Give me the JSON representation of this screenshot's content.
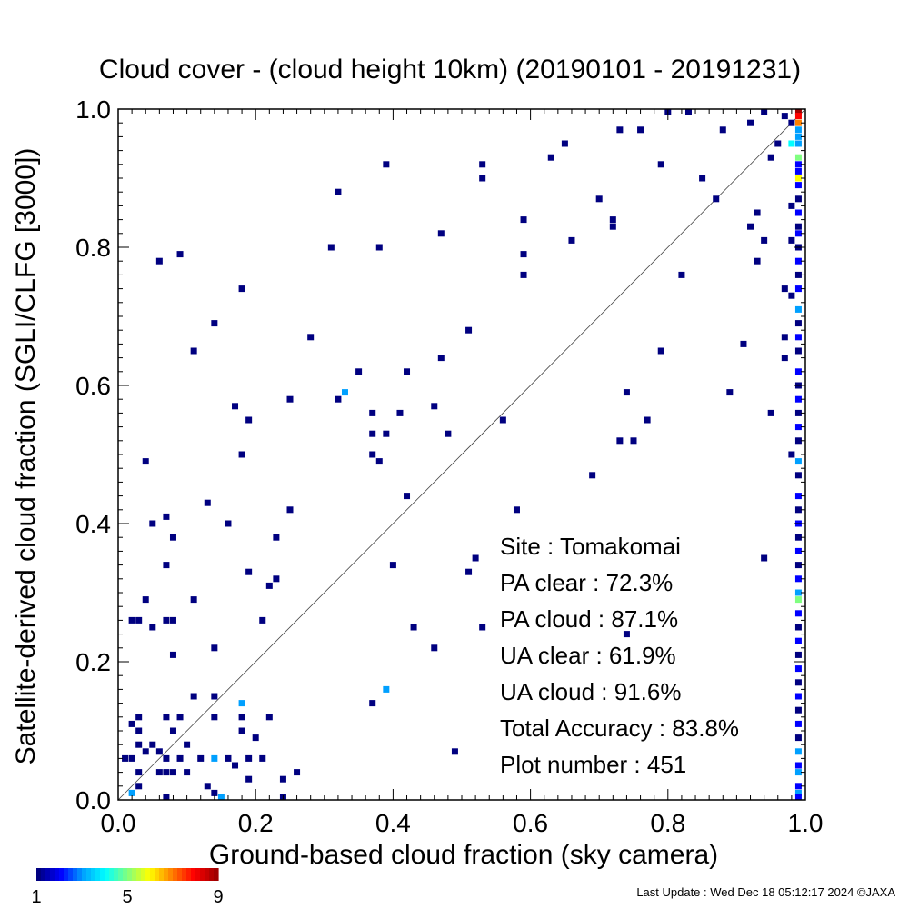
{
  "chart_data": {
    "type": "heatmap",
    "title": "Cloud cover - (cloud height 10km)  (20190101 - 20191231)",
    "xlabel": "Ground-based cloud fraction (sky camera)",
    "ylabel": "Satellite-derived cloud fraction (SGLI/CLFG [3000])",
    "xlim": [
      0.0,
      1.0
    ],
    "ylim": [
      0.0,
      1.0
    ],
    "xticks": [
      "0.0",
      "0.2",
      "0.4",
      "0.6",
      "0.8",
      "1.0"
    ],
    "yticks": [
      "0.0",
      "0.2",
      "0.4",
      "0.6",
      "0.8",
      "1.0"
    ],
    "reference_line": "y = x",
    "grid": false,
    "colorbar": {
      "min": 1,
      "max": 9,
      "tick_labels": [
        "1",
        "5",
        "9"
      ],
      "colormap": "rainbow"
    },
    "stats": [
      {
        "label": "Site : Tomakomai",
        "value": ""
      },
      {
        "label": "PA clear :",
        "value": "72.3%"
      },
      {
        "label": "PA cloud :",
        "value": "87.1%"
      },
      {
        "label": "UA clear :",
        "value": "61.9%"
      },
      {
        "label": "UA cloud :",
        "value": "91.6%"
      },
      {
        "label": "Total Accuracy :",
        "value": "83.8%"
      },
      {
        "label": "Plot number :",
        "value": "451"
      }
    ],
    "points": [
      [
        0.02,
        0.26,
        1
      ],
      [
        0.03,
        0.26,
        1
      ],
      [
        0.04,
        0.29,
        1
      ],
      [
        0.05,
        0.25,
        1
      ],
      [
        0.07,
        0.26,
        1
      ],
      [
        0.08,
        0.26,
        1
      ],
      [
        0.08,
        0.21,
        1
      ],
      [
        0.05,
        0.4,
        1
      ],
      [
        0.07,
        0.41,
        1
      ],
      [
        0.08,
        0.38,
        1
      ],
      [
        0.07,
        0.34,
        1
      ],
      [
        0.04,
        0.49,
        1
      ],
      [
        0.06,
        0.78,
        1
      ],
      [
        0.09,
        0.79,
        1
      ],
      [
        0.11,
        0.65,
        1
      ],
      [
        0.14,
        0.69,
        1
      ],
      [
        0.18,
        0.74,
        1
      ],
      [
        0.13,
        0.43,
        1
      ],
      [
        0.16,
        0.4,
        1
      ],
      [
        0.17,
        0.57,
        1
      ],
      [
        0.19,
        0.55,
        1
      ],
      [
        0.18,
        0.5,
        1
      ],
      [
        0.19,
        0.33,
        1
      ],
      [
        0.21,
        0.26,
        1
      ],
      [
        0.22,
        0.31,
        1
      ],
      [
        0.23,
        0.32,
        1
      ],
      [
        0.23,
        0.38,
        1
      ],
      [
        0.25,
        0.42,
        1
      ],
      [
        0.25,
        0.58,
        1
      ],
      [
        0.28,
        0.67,
        1
      ],
      [
        0.31,
        0.8,
        1
      ],
      [
        0.32,
        0.88,
        1
      ],
      [
        0.32,
        0.58,
        1
      ],
      [
        0.33,
        0.59,
        3
      ],
      [
        0.35,
        0.62,
        1
      ],
      [
        0.38,
        0.8,
        1
      ],
      [
        0.39,
        0.92,
        1
      ],
      [
        0.37,
        0.56,
        1
      ],
      [
        0.37,
        0.53,
        1
      ],
      [
        0.37,
        0.5,
        1
      ],
      [
        0.38,
        0.49,
        1
      ],
      [
        0.39,
        0.53,
        1
      ],
      [
        0.41,
        0.56,
        1
      ],
      [
        0.42,
        0.62,
        1
      ],
      [
        0.42,
        0.44,
        1
      ],
      [
        0.4,
        0.34,
        1
      ],
      [
        0.43,
        0.25,
        1
      ],
      [
        0.46,
        0.57,
        1
      ],
      [
        0.47,
        0.64,
        1
      ],
      [
        0.47,
        0.82,
        1
      ],
      [
        0.48,
        0.53,
        1
      ],
      [
        0.46,
        0.22,
        1
      ],
      [
        0.51,
        0.68,
        1
      ],
      [
        0.52,
        0.35,
        1
      ],
      [
        0.51,
        0.33,
        1
      ],
      [
        0.53,
        0.25,
        1
      ],
      [
        0.49,
        0.07,
        1
      ],
      [
        0.53,
        0.92,
        1
      ],
      [
        0.53,
        0.9,
        1
      ],
      [
        0.56,
        0.55,
        1
      ],
      [
        0.58,
        0.42,
        1
      ],
      [
        0.59,
        0.84,
        1
      ],
      [
        0.59,
        0.79,
        1
      ],
      [
        0.59,
        0.76,
        1
      ],
      [
        0.63,
        0.93,
        1
      ],
      [
        0.65,
        0.95,
        1
      ],
      [
        0.66,
        0.81,
        1
      ],
      [
        0.69,
        0.47,
        1
      ],
      [
        0.7,
        0.87,
        1
      ],
      [
        0.72,
        0.84,
        1
      ],
      [
        0.72,
        0.83,
        1
      ],
      [
        0.73,
        0.52,
        1
      ],
      [
        0.73,
        0.97,
        1
      ],
      [
        0.74,
        0.59,
        1
      ],
      [
        0.74,
        0.24,
        1
      ],
      [
        0.75,
        0.52,
        1
      ],
      [
        0.76,
        0.97,
        1
      ],
      [
        0.77,
        0.55,
        1
      ],
      [
        0.79,
        0.65,
        1
      ],
      [
        0.79,
        0.92,
        1
      ],
      [
        0.8,
        1.0,
        1
      ],
      [
        0.82,
        0.76,
        1
      ],
      [
        0.83,
        1.0,
        1
      ],
      [
        0.85,
        0.9,
        1
      ],
      [
        0.87,
        0.87,
        1
      ],
      [
        0.88,
        0.97,
        1
      ],
      [
        0.89,
        0.59,
        1
      ],
      [
        0.91,
        0.66,
        1
      ],
      [
        0.92,
        0.98,
        1
      ],
      [
        0.92,
        0.83,
        1
      ],
      [
        0.93,
        0.85,
        1
      ],
      [
        0.94,
        0.81,
        1
      ],
      [
        0.93,
        0.78,
        1
      ],
      [
        0.95,
        0.56,
        1
      ],
      [
        0.95,
        0.93,
        1
      ],
      [
        0.96,
        0.95,
        1
      ],
      [
        0.97,
        0.67,
        1
      ],
      [
        0.97,
        0.64,
        1
      ],
      [
        0.97,
        0.74,
        1
      ],
      [
        0.98,
        0.5,
        1
      ],
      [
        0.97,
        0.99,
        1
      ],
      [
        0.98,
        0.98,
        1
      ],
      [
        0.94,
        0.35,
        1
      ],
      [
        0.94,
        1.0,
        1
      ],
      [
        0.02,
        0.11,
        1
      ],
      [
        0.03,
        0.12,
        1
      ],
      [
        0.03,
        0.1,
        1
      ],
      [
        0.03,
        0.08,
        1
      ],
      [
        0.02,
        0.06,
        1
      ],
      [
        0.01,
        0.06,
        1
      ],
      [
        0.04,
        0.07,
        1
      ],
      [
        0.05,
        0.08,
        1
      ],
      [
        0.06,
        0.07,
        1
      ],
      [
        0.06,
        0.04,
        1
      ],
      [
        0.07,
        0.04,
        1
      ],
      [
        0.08,
        0.04,
        1
      ],
      [
        0.07,
        0.06,
        1
      ],
      [
        0.09,
        0.06,
        1
      ],
      [
        0.07,
        0.12,
        1
      ],
      [
        0.09,
        0.12,
        1
      ],
      [
        0.08,
        0.1,
        1
      ],
      [
        0.1,
        0.08,
        1
      ],
      [
        0.1,
        0.04,
        1
      ],
      [
        0.11,
        0.15,
        1
      ],
      [
        0.12,
        0.06,
        1
      ],
      [
        0.13,
        0.02,
        1
      ],
      [
        0.14,
        0.15,
        1
      ],
      [
        0.14,
        0.12,
        1
      ],
      [
        0.14,
        0.06,
        3
      ],
      [
        0.16,
        0.06,
        1
      ],
      [
        0.17,
        0.05,
        1
      ],
      [
        0.18,
        0.14,
        3
      ],
      [
        0.18,
        0.12,
        1
      ],
      [
        0.18,
        0.1,
        1
      ],
      [
        0.19,
        0.06,
        1
      ],
      [
        0.2,
        0.09,
        1
      ],
      [
        0.21,
        0.06,
        1
      ],
      [
        0.22,
        0.12,
        1
      ],
      [
        0.19,
        0.03,
        1
      ],
      [
        0.24,
        0.03,
        1
      ],
      [
        0.26,
        0.04,
        1
      ],
      [
        0.24,
        0.0,
        1
      ],
      [
        0.02,
        0.01,
        3
      ],
      [
        0.03,
        0.04,
        1
      ],
      [
        0.03,
        0.02,
        1
      ],
      [
        0.07,
        0.0,
        1
      ],
      [
        0.14,
        0.01,
        1
      ],
      [
        0.11,
        0.29,
        1
      ],
      [
        0.14,
        0.22,
        1
      ],
      [
        0.37,
        0.14,
        1
      ],
      [
        0.39,
        0.16,
        3
      ],
      [
        0.15,
        0.0,
        3
      ],
      [
        0.99,
        1.0,
        9
      ],
      [
        0.99,
        0.99,
        8
      ],
      [
        0.99,
        0.98,
        7
      ],
      [
        0.99,
        0.97,
        3
      ],
      [
        0.99,
        0.96,
        3
      ],
      [
        0.99,
        0.95,
        3
      ],
      [
        0.98,
        0.95,
        4
      ],
      [
        0.99,
        0.93,
        5
      ],
      [
        0.99,
        0.92,
        2
      ],
      [
        0.99,
        0.91,
        2
      ],
      [
        0.99,
        0.9,
        6
      ],
      [
        0.99,
        0.89,
        2
      ],
      [
        0.99,
        0.87,
        1
      ],
      [
        0.99,
        0.85,
        2
      ],
      [
        0.99,
        0.83,
        1
      ],
      [
        0.99,
        0.82,
        2
      ],
      [
        0.99,
        0.8,
        1
      ],
      [
        0.99,
        0.78,
        2
      ],
      [
        0.99,
        0.76,
        1
      ],
      [
        0.99,
        0.74,
        2
      ],
      [
        0.99,
        0.71,
        3
      ],
      [
        0.99,
        0.69,
        1
      ],
      [
        0.99,
        0.67,
        2
      ],
      [
        0.99,
        0.65,
        1
      ],
      [
        0.99,
        0.62,
        2
      ],
      [
        0.99,
        0.6,
        1
      ],
      [
        0.99,
        0.58,
        2
      ],
      [
        0.99,
        0.56,
        1
      ],
      [
        0.99,
        0.54,
        2
      ],
      [
        0.99,
        0.52,
        1
      ],
      [
        0.99,
        0.49,
        3
      ],
      [
        0.99,
        0.47,
        1
      ],
      [
        0.99,
        0.44,
        2
      ],
      [
        0.99,
        0.42,
        1
      ],
      [
        0.99,
        0.4,
        2
      ],
      [
        0.99,
        0.38,
        1
      ],
      [
        0.99,
        0.36,
        2
      ],
      [
        0.99,
        0.34,
        1
      ],
      [
        0.99,
        0.32,
        2
      ],
      [
        0.99,
        0.3,
        3
      ],
      [
        0.99,
        0.29,
        5
      ],
      [
        0.99,
        0.27,
        2
      ],
      [
        0.99,
        0.25,
        1
      ],
      [
        0.99,
        0.23,
        2
      ],
      [
        0.99,
        0.21,
        1
      ],
      [
        0.99,
        0.19,
        2
      ],
      [
        0.99,
        0.17,
        1
      ],
      [
        0.99,
        0.15,
        2
      ],
      [
        0.99,
        0.13,
        1
      ],
      [
        0.99,
        0.11,
        2
      ],
      [
        0.99,
        0.09,
        1
      ],
      [
        0.99,
        0.07,
        3
      ],
      [
        0.99,
        0.05,
        2
      ],
      [
        0.99,
        0.04,
        3
      ],
      [
        0.99,
        0.02,
        2
      ],
      [
        0.99,
        0.01,
        3
      ],
      [
        0.99,
        0.0,
        2
      ],
      [
        0.98,
        0.86,
        1
      ],
      [
        0.98,
        0.73,
        1
      ],
      [
        0.98,
        0.81,
        1
      ]
    ]
  },
  "footer": {
    "last_update": "Last Update : Wed Dec 18 05:12:17 2024  ©JAXA"
  }
}
